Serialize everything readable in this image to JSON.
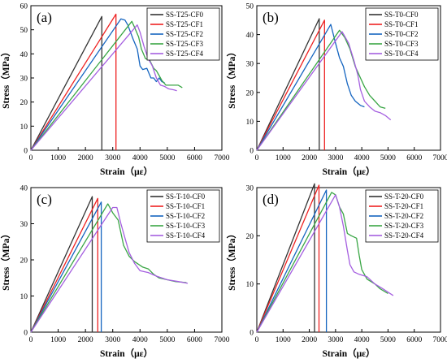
{
  "colors": {
    "CF0": "#333333",
    "CF1": "#ee2222",
    "CF2": "#1565c0",
    "CF3": "#3aa645",
    "CF4": "#a55fe0"
  },
  "chart_data": [
    {
      "type": "line",
      "panel_label": "(a)",
      "xlabel": "Strain（με）",
      "ylabel": "Stress（MPa）",
      "xlim": [
        0,
        7000
      ],
      "ylim": [
        0,
        60
      ],
      "xticks": [
        0,
        1000,
        2000,
        3000,
        4000,
        5000,
        6000,
        7000
      ],
      "yticks": [
        0,
        10,
        20,
        30,
        40,
        50,
        60
      ],
      "legend_position": "top-right",
      "series": [
        {
          "name": "SS-T25-CF0",
          "color_key": "CF0",
          "points": [
            [
              0,
              0
            ],
            [
              2600,
              55.5
            ],
            [
              2600,
              0
            ]
          ]
        },
        {
          "name": "SS-T25-CF1",
          "color_key": "CF1",
          "points": [
            [
              0,
              0
            ],
            [
              3120,
              56.5
            ],
            [
              3120,
              0
            ]
          ]
        },
        {
          "name": "SS-T25-CF2",
          "color_key": "CF2",
          "points": [
            [
              0,
              0
            ],
            [
              3300,
              54.5
            ],
            [
              3450,
              54
            ],
            [
              3550,
              52
            ],
            [
              3750,
              46
            ],
            [
              3900,
              42
            ],
            [
              4000,
              35
            ],
            [
              4100,
              33.5
            ],
            [
              4250,
              34
            ],
            [
              4400,
              30
            ],
            [
              4500,
              30
            ],
            [
              4600,
              28.5
            ],
            [
              4700,
              30
            ],
            [
              4800,
              28.5
            ],
            [
              4900,
              28
            ]
          ]
        },
        {
          "name": "SS-T25-CF3",
          "color_key": "CF3",
          "points": [
            [
              0,
              0
            ],
            [
              3700,
              53.5
            ],
            [
              3800,
              51
            ],
            [
              3950,
              47
            ],
            [
              4050,
              42
            ],
            [
              4200,
              38
            ],
            [
              4350,
              37.5
            ],
            [
              4500,
              34
            ],
            [
              4600,
              33
            ],
            [
              4700,
              31
            ],
            [
              4800,
              29
            ],
            [
              4950,
              27
            ],
            [
              5200,
              27
            ],
            [
              5400,
              27
            ],
            [
              5550,
              26
            ]
          ]
        },
        {
          "name": "SS-T25-CF4",
          "color_key": "CF4",
          "points": [
            [
              0,
              0
            ],
            [
              3900,
              52
            ],
            [
              4000,
              49
            ],
            [
              4150,
              43
            ],
            [
              4300,
              38
            ],
            [
              4450,
              35
            ],
            [
              4600,
              30
            ],
            [
              4750,
              27
            ],
            [
              4900,
              26.5
            ],
            [
              5050,
              25.5
            ],
            [
              5250,
              25
            ],
            [
              5350,
              24.7
            ]
          ]
        }
      ]
    },
    {
      "type": "line",
      "panel_label": "(b)",
      "xlabel": "Strain（με）",
      "ylabel": "Stress（MPa）",
      "xlim": [
        0,
        7000
      ],
      "ylim": [
        0,
        50
      ],
      "xticks": [
        0,
        1000,
        2000,
        3000,
        4000,
        5000,
        6000,
        7000
      ],
      "yticks": [
        0,
        10,
        20,
        30,
        40,
        50
      ],
      "legend_position": "top-right",
      "series": [
        {
          "name": "SS-T0-CF0",
          "color_key": "CF0",
          "points": [
            [
              0,
              0
            ],
            [
              2380,
              45.5
            ],
            [
              2380,
              0
            ]
          ]
        },
        {
          "name": "SS-T0-CF1",
          "color_key": "CF1",
          "points": [
            [
              0,
              0
            ],
            [
              2580,
              45
            ],
            [
              2580,
              0
            ]
          ]
        },
        {
          "name": "SS-T0-CF2",
          "color_key": "CF2",
          "points": [
            [
              0,
              0
            ],
            [
              2820,
              43.5
            ],
            [
              3000,
              37
            ],
            [
              3150,
              32
            ],
            [
              3300,
              29
            ],
            [
              3450,
              23
            ],
            [
              3600,
              19
            ],
            [
              3750,
              17
            ],
            [
              3950,
              15.5
            ],
            [
              4100,
              15
            ]
          ]
        },
        {
          "name": "SS-T0-CF3",
          "color_key": "CF3",
          "points": [
            [
              0,
              0
            ],
            [
              3150,
              41.5
            ],
            [
              3350,
              39
            ],
            [
              3550,
              35
            ],
            [
              3750,
              29
            ],
            [
              3950,
              25
            ],
            [
              4100,
              22
            ],
            [
              4300,
              19
            ],
            [
              4500,
              17
            ],
            [
              4700,
              15
            ],
            [
              4900,
              14.5
            ]
          ]
        },
        {
          "name": "SS-T0-CF4",
          "color_key": "CF4",
          "points": [
            [
              0,
              0
            ],
            [
              3250,
              41
            ],
            [
              3500,
              37
            ],
            [
              3700,
              31
            ],
            [
              3850,
              26
            ],
            [
              3950,
              21
            ],
            [
              4100,
              17
            ],
            [
              4300,
              15
            ],
            [
              4500,
              13.5
            ],
            [
              4700,
              13
            ],
            [
              4900,
              12
            ],
            [
              5100,
              10.5
            ]
          ]
        }
      ]
    },
    {
      "type": "line",
      "panel_label": "(c)",
      "xlabel": "Strain（με）",
      "ylabel": "Stress（MPa）",
      "xlim": [
        0,
        7000
      ],
      "ylim": [
        0,
        40
      ],
      "xticks": [
        0,
        1000,
        2000,
        3000,
        4000,
        5000,
        6000,
        7000
      ],
      "yticks": [
        0,
        10,
        20,
        30,
        40
      ],
      "legend_position": "top-right",
      "series": [
        {
          "name": "SS-T-10-CF0",
          "color_key": "CF0",
          "points": [
            [
              0,
              0
            ],
            [
              2250,
              37.5
            ],
            [
              2250,
              0
            ]
          ]
        },
        {
          "name": "SS-T-10-CF1",
          "color_key": "CF1",
          "points": [
            [
              0,
              0
            ],
            [
              2450,
              37
            ],
            [
              2450,
              0
            ]
          ]
        },
        {
          "name": "SS-T-10-CF2",
          "color_key": "CF2",
          "points": [
            [
              0,
              0
            ],
            [
              2580,
              36
            ],
            [
              2580,
              0
            ]
          ]
        },
        {
          "name": "SS-T-10-CF3",
          "color_key": "CF3",
          "points": [
            [
              0,
              0
            ],
            [
              2820,
              35.5
            ],
            [
              3000,
              33
            ],
            [
              3200,
              31
            ],
            [
              3400,
              24
            ],
            [
              3600,
              21
            ],
            [
              3800,
              19.5
            ],
            [
              4100,
              18
            ],
            [
              4300,
              17.5
            ],
            [
              4500,
              16
            ],
            [
              4700,
              15
            ],
            [
              5000,
              14.5
            ],
            [
              5300,
              14
            ],
            [
              5700,
              13.7
            ]
          ]
        },
        {
          "name": "SS-T-10-CF4",
          "color_key": "CF4",
          "points": [
            [
              0,
              0
            ],
            [
              3000,
              34.5
            ],
            [
              3150,
              34.5
            ],
            [
              3300,
              30
            ],
            [
              3450,
              26
            ],
            [
              3600,
              22
            ],
            [
              3800,
              19
            ],
            [
              4000,
              17
            ],
            [
              4300,
              16.5
            ],
            [
              4600,
              15.5
            ],
            [
              5000,
              14.5
            ],
            [
              5400,
              14
            ],
            [
              5750,
              13.5
            ]
          ]
        }
      ]
    },
    {
      "type": "line",
      "panel_label": "(d)",
      "xlabel": "Strain（με）",
      "ylabel": "Stress（MPa）",
      "xlim": [
        0,
        7000
      ],
      "ylim": [
        0,
        30
      ],
      "xticks": [
        0,
        1000,
        2000,
        3000,
        4000,
        5000,
        6000,
        7000
      ],
      "yticks": [
        0,
        10,
        20,
        30
      ],
      "legend_position": "top-right",
      "series": [
        {
          "name": "SS-T-20-CF0",
          "color_key": "CF0",
          "points": [
            [
              0,
              0
            ],
            [
              2200,
              30.8
            ],
            [
              2200,
              0
            ]
          ]
        },
        {
          "name": "SS-T-20-CF1",
          "color_key": "CF1",
          "points": [
            [
              0,
              0
            ],
            [
              2370,
              30.5
            ],
            [
              2370,
              0
            ]
          ]
        },
        {
          "name": "SS-T-20-CF2",
          "color_key": "CF2",
          "points": [
            [
              0,
              0
            ],
            [
              2650,
              29.5
            ],
            [
              2650,
              0
            ]
          ]
        },
        {
          "name": "SS-T-20-CF3",
          "color_key": "CF3",
          "points": [
            [
              0,
              0
            ],
            [
              2850,
              29
            ],
            [
              3000,
              28.5
            ],
            [
              3150,
              26
            ],
            [
              3300,
              24.5
            ],
            [
              3450,
              20.5
            ],
            [
              3600,
              20
            ],
            [
              3800,
              19.5
            ],
            [
              3900,
              16
            ],
            [
              4000,
              13
            ],
            [
              4200,
              11
            ],
            [
              4500,
              10
            ],
            [
              4700,
              9
            ],
            [
              5000,
              8
            ]
          ]
        },
        {
          "name": "SS-T-20-CF4",
          "color_key": "CF4",
          "points": [
            [
              0,
              0
            ],
            [
              3000,
              28.5
            ],
            [
              3150,
              26
            ],
            [
              3300,
              22
            ],
            [
              3450,
              17
            ],
            [
              3550,
              14
            ],
            [
              3700,
              12.5
            ],
            [
              3900,
              12
            ],
            [
              4200,
              11.5
            ],
            [
              4500,
              10
            ],
            [
              4800,
              9
            ],
            [
              5000,
              8.3
            ],
            [
              5200,
              7.6
            ]
          ]
        }
      ]
    }
  ]
}
